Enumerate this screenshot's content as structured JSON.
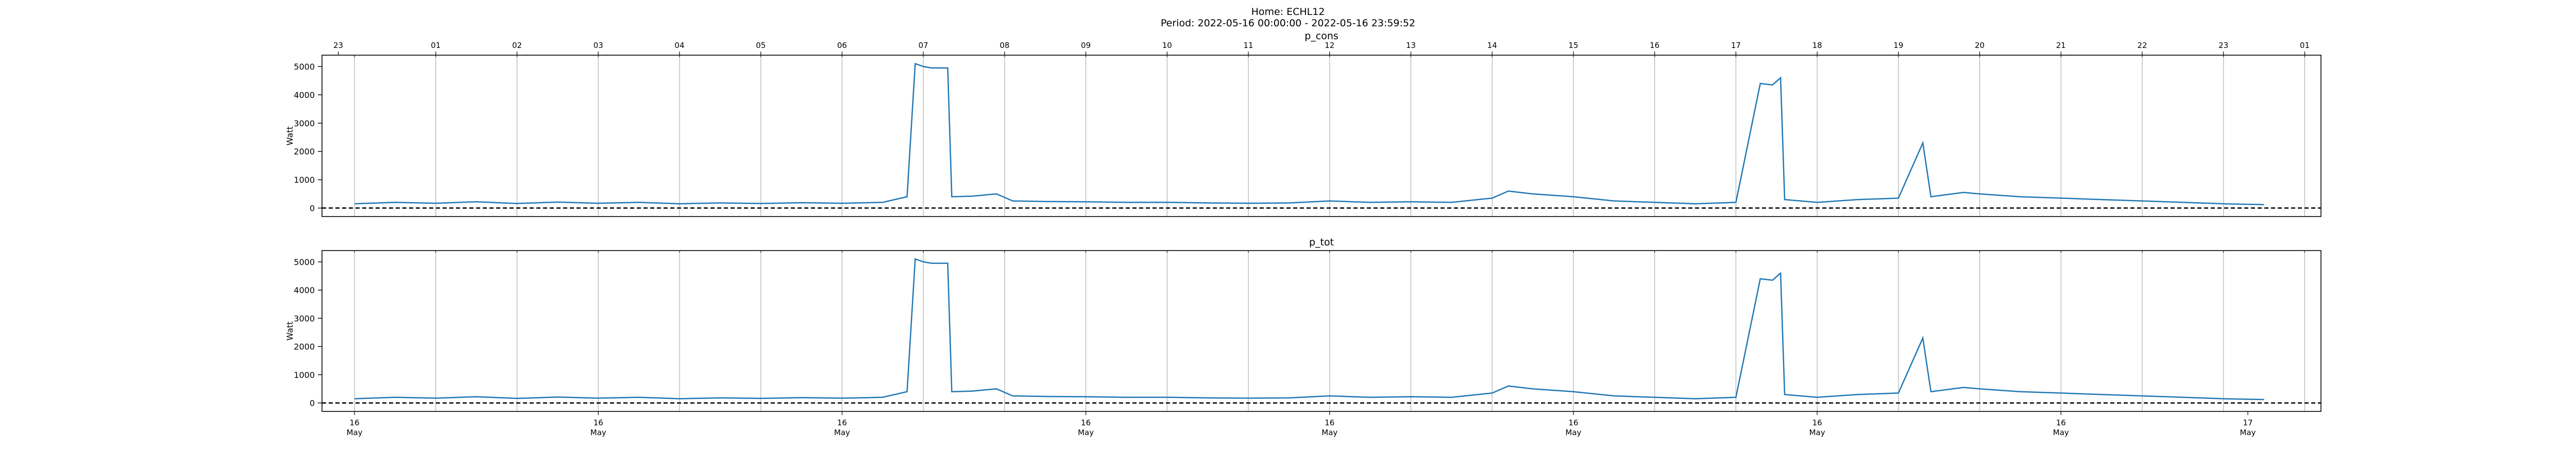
{
  "header": {
    "home": "Home: ECHL12",
    "period": "Period: 2022-05-16 00:00:00 - 2022-05-16 23:59:52"
  },
  "colors": {
    "series": "#1f77b4",
    "grid": "#b0b0b0",
    "zero_line": "#000000"
  },
  "chart_data": [
    {
      "type": "line",
      "title": "p_cons",
      "ylabel": "Watt",
      "ylim": [
        -300,
        5400
      ],
      "yticks": [
        0,
        1000,
        2000,
        3000,
        4000,
        5000
      ],
      "xlim": [
        -0.4,
        24.2
      ],
      "grid": "vertical lines at each hour",
      "top_hour_ticks": [
        {
          "h": -0.2,
          "label": "23"
        },
        {
          "h": 1,
          "label": "01"
        },
        {
          "h": 2,
          "label": "02"
        },
        {
          "h": 3,
          "label": "03"
        },
        {
          "h": 4,
          "label": "04"
        },
        {
          "h": 5,
          "label": "05"
        },
        {
          "h": 6,
          "label": "06"
        },
        {
          "h": 7,
          "label": "07"
        },
        {
          "h": 8,
          "label": "08"
        },
        {
          "h": 9,
          "label": "09"
        },
        {
          "h": 10,
          "label": "10"
        },
        {
          "h": 11,
          "label": "11"
        },
        {
          "h": 12,
          "label": "12"
        },
        {
          "h": 13,
          "label": "13"
        },
        {
          "h": 14,
          "label": "14"
        },
        {
          "h": 15,
          "label": "15"
        },
        {
          "h": 16,
          "label": "16"
        },
        {
          "h": 17,
          "label": "17"
        },
        {
          "h": 18,
          "label": "18"
        },
        {
          "h": 19,
          "label": "19"
        },
        {
          "h": 20,
          "label": "20"
        },
        {
          "h": 21,
          "label": "21"
        },
        {
          "h": 22,
          "label": "22"
        },
        {
          "h": 23,
          "label": "23"
        },
        {
          "h": 24,
          "label": "01"
        }
      ],
      "baseline": 0,
      "series_points": [
        [
          0.0,
          150
        ],
        [
          0.5,
          200
        ],
        [
          1.0,
          170
        ],
        [
          1.5,
          220
        ],
        [
          2.0,
          160
        ],
        [
          2.5,
          210
        ],
        [
          3.0,
          170
        ],
        [
          3.5,
          200
        ],
        [
          4.0,
          150
        ],
        [
          4.5,
          180
        ],
        [
          5.0,
          160
        ],
        [
          5.5,
          190
        ],
        [
          6.0,
          170
        ],
        [
          6.5,
          200
        ],
        [
          6.8,
          400
        ],
        [
          6.9,
          5100
        ],
        [
          7.0,
          5000
        ],
        [
          7.1,
          4950
        ],
        [
          7.2,
          4950
        ],
        [
          7.3,
          4950
        ],
        [
          7.35,
          400
        ],
        [
          7.6,
          420
        ],
        [
          7.9,
          500
        ],
        [
          8.1,
          250
        ],
        [
          8.5,
          230
        ],
        [
          9.0,
          220
        ],
        [
          9.5,
          200
        ],
        [
          10.0,
          200
        ],
        [
          10.5,
          180
        ],
        [
          11.0,
          170
        ],
        [
          11.5,
          180
        ],
        [
          12.0,
          250
        ],
        [
          12.5,
          200
        ],
        [
          13.0,
          220
        ],
        [
          13.5,
          200
        ],
        [
          14.0,
          350
        ],
        [
          14.2,
          600
        ],
        [
          14.5,
          500
        ],
        [
          15.0,
          400
        ],
        [
          15.5,
          250
        ],
        [
          16.0,
          200
        ],
        [
          16.5,
          150
        ],
        [
          17.0,
          200
        ],
        [
          17.3,
          4400
        ],
        [
          17.45,
          4350
        ],
        [
          17.55,
          4600
        ],
        [
          17.6,
          300
        ],
        [
          18.0,
          200
        ],
        [
          18.5,
          300
        ],
        [
          19.0,
          350
        ],
        [
          19.3,
          2300
        ],
        [
          19.4,
          400
        ],
        [
          19.8,
          550
        ],
        [
          20.0,
          500
        ],
        [
          20.5,
          400
        ],
        [
          21.0,
          350
        ],
        [
          21.5,
          300
        ],
        [
          22.0,
          250
        ],
        [
          22.5,
          200
        ],
        [
          23.0,
          150
        ],
        [
          23.5,
          120
        ]
      ]
    },
    {
      "type": "line",
      "title": "p_tot",
      "ylabel": "Watt",
      "ylim": [
        -300,
        5400
      ],
      "yticks": [
        0,
        1000,
        2000,
        3000,
        4000,
        5000
      ],
      "xlim": [
        -0.4,
        24.2
      ],
      "grid": "vertical lines at each hour",
      "bottom_date_ticks": [
        {
          "h": 0,
          "day": "16",
          "month": "May"
        },
        {
          "h": 3,
          "day": "16",
          "month": "May"
        },
        {
          "h": 6,
          "day": "16",
          "month": "May"
        },
        {
          "h": 9,
          "day": "16",
          "month": "May"
        },
        {
          "h": 12,
          "day": "16",
          "month": "May"
        },
        {
          "h": 15,
          "day": "16",
          "month": "May"
        },
        {
          "h": 18,
          "day": "16",
          "month": "May"
        },
        {
          "h": 21,
          "day": "16",
          "month": "May"
        },
        {
          "h": 23.3,
          "day": "17",
          "month": "May"
        }
      ],
      "baseline": 0,
      "series_points": [
        [
          0.0,
          150
        ],
        [
          0.5,
          200
        ],
        [
          1.0,
          170
        ],
        [
          1.5,
          220
        ],
        [
          2.0,
          160
        ],
        [
          2.5,
          210
        ],
        [
          3.0,
          170
        ],
        [
          3.5,
          200
        ],
        [
          4.0,
          150
        ],
        [
          4.5,
          180
        ],
        [
          5.0,
          160
        ],
        [
          5.5,
          190
        ],
        [
          6.0,
          170
        ],
        [
          6.5,
          200
        ],
        [
          6.8,
          400
        ],
        [
          6.9,
          5100
        ],
        [
          7.0,
          5000
        ],
        [
          7.1,
          4950
        ],
        [
          7.2,
          4950
        ],
        [
          7.3,
          4950
        ],
        [
          7.35,
          400
        ],
        [
          7.6,
          420
        ],
        [
          7.9,
          500
        ],
        [
          8.1,
          250
        ],
        [
          8.5,
          230
        ],
        [
          9.0,
          220
        ],
        [
          9.5,
          200
        ],
        [
          10.0,
          200
        ],
        [
          10.5,
          180
        ],
        [
          11.0,
          170
        ],
        [
          11.5,
          180
        ],
        [
          12.0,
          250
        ],
        [
          12.5,
          200
        ],
        [
          13.0,
          220
        ],
        [
          13.5,
          200
        ],
        [
          14.0,
          350
        ],
        [
          14.2,
          600
        ],
        [
          14.5,
          500
        ],
        [
          15.0,
          400
        ],
        [
          15.5,
          250
        ],
        [
          16.0,
          200
        ],
        [
          16.5,
          150
        ],
        [
          17.0,
          200
        ],
        [
          17.3,
          4400
        ],
        [
          17.45,
          4350
        ],
        [
          17.55,
          4600
        ],
        [
          17.6,
          300
        ],
        [
          18.0,
          200
        ],
        [
          18.5,
          300
        ],
        [
          19.0,
          350
        ],
        [
          19.3,
          2300
        ],
        [
          19.4,
          400
        ],
        [
          19.8,
          550
        ],
        [
          20.0,
          500
        ],
        [
          20.5,
          400
        ],
        [
          21.0,
          350
        ],
        [
          21.5,
          300
        ],
        [
          22.0,
          250
        ],
        [
          22.5,
          200
        ],
        [
          23.0,
          150
        ],
        [
          23.5,
          120
        ]
      ]
    }
  ]
}
